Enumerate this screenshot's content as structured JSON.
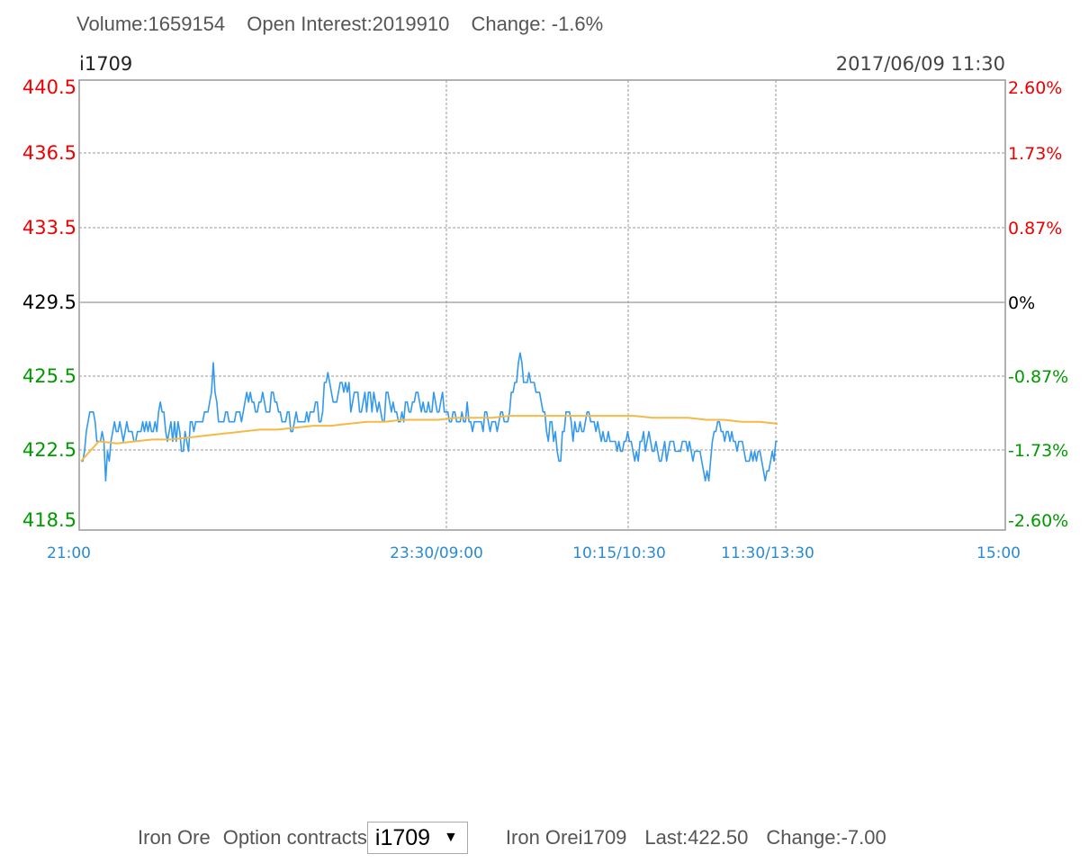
{
  "header": {
    "volume": "Volume:1659154",
    "open_interest": "Open Interest:2019910",
    "change": "Change: -1.6%"
  },
  "chart_data": {
    "type": "line",
    "title": "i1709",
    "subtitle": "2017/06/09 11:30",
    "xlabel": "",
    "ylabel": "",
    "x_tick_labels": [
      "21:00",
      "23:30/09:00",
      "10:15/10:30",
      "11:30/13:30",
      "15:00"
    ],
    "y_range": [
      418.5,
      440.5
    ],
    "y_ticks_left": [
      "440.5",
      "436.5",
      "433.5",
      "429.5",
      "425.5",
      "422.5",
      "418.5"
    ],
    "y_ticks_right": [
      "2.60%",
      "1.73%",
      "0.87%",
      "0%",
      "-0.87%",
      "-1.73%",
      "-2.60%"
    ],
    "reference_price": 429.5,
    "grid": true,
    "colors": {
      "up": "#ee0000",
      "down": "#009900",
      "neutral": "#000000",
      "price": "#3399ee",
      "average": "#f5b947"
    },
    "series": [
      {
        "values": [
          421.5,
          421.5,
          422.0,
          423.0,
          423.5,
          424.0,
          424.0,
          424.0,
          423.5,
          422.5,
          422.5,
          422.5,
          423.0,
          422.5,
          420.5,
          422.0,
          421.5,
          422.5,
          423.0,
          423.5,
          423.0,
          423.0,
          423.5,
          423.0,
          422.5,
          423.0,
          423.5,
          423.0,
          423.0,
          423.0,
          422.5,
          422.5,
          423.0,
          423.0,
          423.0,
          423.5,
          423.0,
          423.5,
          423.0,
          423.5,
          423.0,
          423.0,
          423.5,
          423.0,
          424.0,
          424.5,
          424.0,
          424.0,
          423.0,
          422.5,
          423.0,
          423.5,
          422.5,
          423.5,
          422.5,
          423.5,
          423.0,
          422.0,
          422.0,
          423.0,
          422.5,
          422.0,
          423.5,
          423.5,
          423.0,
          423.5,
          423.5,
          423.5,
          423.5,
          423.5,
          424.0,
          424.0,
          424.0,
          424.5,
          425.0,
          426.5,
          425.0,
          424.5,
          423.5,
          423.5,
          423.5,
          423.5,
          424.0,
          424.0,
          423.5,
          423.5,
          423.5,
          423.5,
          424.0,
          424.0,
          424.0,
          423.5,
          424.0,
          424.5,
          425.0,
          424.5,
          425.0,
          424.5,
          424.5,
          424.0,
          424.0,
          424.5,
          424.5,
          425.0,
          424.5,
          424.0,
          424.0,
          424.0,
          425.0,
          425.0,
          424.5,
          424.5,
          424.0,
          424.0,
          423.5,
          423.5,
          423.5,
          424.0,
          424.0,
          423.0,
          423.0,
          423.5,
          424.0,
          423.5,
          423.5,
          423.5,
          423.5,
          423.5,
          424.0,
          423.5,
          424.0,
          424.0,
          424.0,
          424.5,
          424.5,
          423.5,
          423.5,
          424.0,
          425.5,
          425.5,
          426.0,
          425.5,
          425.0,
          424.5,
          424.5,
          424.5,
          425.0,
          425.5,
          425.5,
          425.0,
          425.5,
          425.0,
          425.5,
          424.0,
          424.5,
          425.0,
          425.0,
          425.0,
          424.0,
          424.0,
          424.5,
          425.0,
          424.0,
          425.0,
          425.0,
          424.0,
          425.0,
          424.5,
          424.0,
          424.5,
          424.0,
          423.5,
          423.5,
          425.0,
          425.0,
          424.5,
          424.0,
          424.5,
          424.0,
          424.0,
          423.5,
          423.5,
          424.0,
          423.5,
          424.5,
          424.5,
          424.0,
          424.0,
          424.5,
          424.5,
          425.0,
          425.0,
          424.5,
          424.0,
          424.5,
          424.0,
          424.0,
          424.5,
          424.0,
          424.0,
          425.0,
          424.5,
          424.0,
          424.0,
          424.5,
          425.0,
          424.0,
          424.0,
          424.0,
          423.5,
          423.5,
          424.0,
          424.0,
          423.5,
          423.5,
          423.5,
          424.0,
          423.5,
          423.5,
          424.5,
          423.5,
          423.5,
          423.0,
          423.5,
          423.5,
          423.5,
          423.5,
          423.5,
          423.0,
          424.0,
          424.0,
          423.5,
          423.0,
          423.5,
          423.5,
          423.5,
          423.0,
          423.5,
          424.0,
          424.0,
          423.5,
          423.5,
          423.5,
          424.0,
          425.0,
          425.0,
          425.5,
          425.5,
          426.5,
          427.0,
          426.5,
          425.5,
          425.5,
          425.5,
          426.0,
          425.5,
          425.5,
          425.5,
          425.0,
          425.0,
          425.0,
          424.5,
          424.0,
          424.0,
          423.0,
          422.5,
          423.5,
          423.5,
          422.5,
          423.0,
          422.0,
          421.5,
          421.5,
          423.0,
          423.0,
          424.0,
          424.0,
          424.0,
          423.5,
          422.5,
          423.5,
          423.0,
          423.0,
          423.5,
          423.0,
          423.0,
          423.5,
          424.0,
          424.0,
          423.5,
          423.5,
          423.5,
          423.0,
          423.5,
          423.0,
          422.5,
          423.0,
          422.5,
          422.5,
          423.0,
          422.5,
          422.5,
          422.5,
          422.5,
          422.0,
          422.5,
          422.0,
          422.0,
          422.5,
          422.5,
          423.0,
          422.5,
          422.5,
          422.0,
          421.5,
          422.0,
          421.5,
          422.5,
          422.5,
          423.0,
          422.0,
          422.5,
          423.0,
          422.5,
          422.0,
          422.0,
          422.5,
          422.0,
          421.5,
          421.5,
          422.0,
          422.5,
          421.5,
          422.0,
          422.5,
          422.5,
          422.5,
          422.0,
          422.0,
          422.0,
          422.0,
          422.5,
          422.5,
          422.5,
          422.0,
          422.5,
          422.0,
          421.5,
          422.0,
          422.0,
          422.0,
          422.0,
          421.5,
          421.0,
          420.5,
          421.0,
          420.5,
          421.5,
          422.5,
          423.0,
          423.0,
          423.5,
          423.5,
          423.0,
          423.0,
          422.5,
          423.0,
          423.0,
          422.5,
          423.0,
          422.5,
          422.5,
          422.0,
          422.5,
          422.5,
          422.5,
          422.0,
          421.5,
          421.5,
          421.5,
          422.0,
          421.5,
          422.0,
          421.5,
          422.0,
          422.0,
          421.5,
          421.0,
          420.5,
          421.0,
          421.0,
          421.5,
          422.0,
          421.5,
          422.5,
          422.5
        ],
        "color": "#3399ee"
      },
      {
        "values": [
          421.5,
          422.5,
          422.4,
          422.5,
          422.6,
          422.6,
          422.7,
          422.8,
          422.9,
          423.0,
          423.1,
          423.1,
          423.2,
          423.3,
          423.3,
          423.4,
          423.5,
          423.5,
          423.6,
          423.6,
          423.6,
          423.7,
          423.7,
          423.7,
          423.8,
          423.8,
          423.8,
          423.8,
          423.8,
          423.8,
          423.8,
          423.8,
          423.7,
          423.7,
          423.7,
          423.6,
          423.6,
          423.5,
          423.5,
          423.4
        ],
        "color": "#f5b947"
      }
    ]
  },
  "bottom": {
    "commodity": "Iron Ore",
    "option_contracts_label": "Option contracts",
    "selected_contract": "i1709",
    "quote_name": "Iron Orei1709",
    "last": "Last:422.50",
    "change": "Change:-7.00"
  }
}
